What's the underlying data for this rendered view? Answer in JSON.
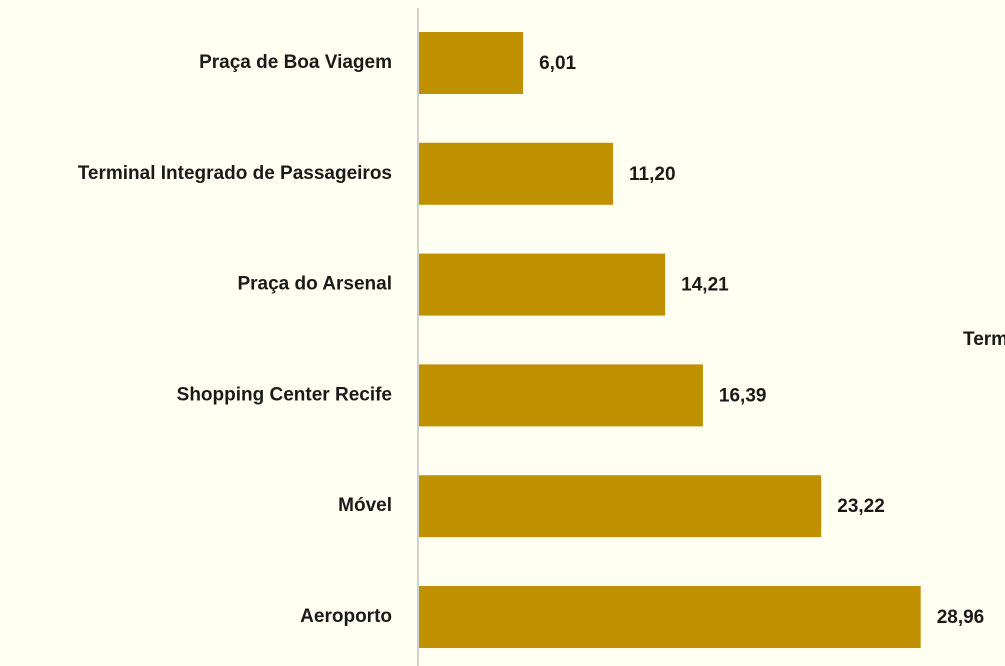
{
  "chart_data": {
    "type": "hbar",
    "categories": [
      "Praça de Boa Viagem",
      "Terminal Integrado de Passageiros",
      "Praça do Arsenal",
      "Shopping Center Recife",
      "Móvel",
      "Aeroporto"
    ],
    "values": [
      6.01,
      11.2,
      14.21,
      16.39,
      23.22,
      28.96
    ],
    "value_labels": [
      "6,01",
      "11,20",
      "14,21",
      "16,39",
      "23,22",
      "28,96"
    ],
    "color": "#bf9000",
    "xlim": [
      0,
      34
    ],
    "annotation": "Term"
  }
}
